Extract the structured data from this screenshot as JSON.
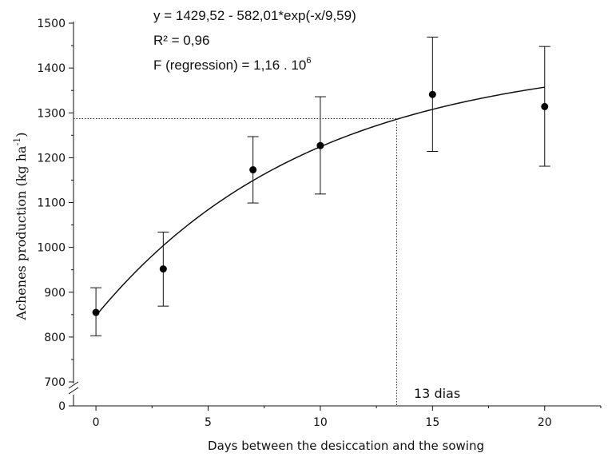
{
  "chart_data": {
    "type": "scatter",
    "xlabel": "Days between the desiccation and the sowing",
    "ylabel_main": "Achenes production (kg ha",
    "ylabel_sup": "-1",
    "ylabel_close": ")",
    "xlim": [
      -1,
      23
    ],
    "ylim": [
      700,
      1500
    ],
    "y_break_label": "0",
    "x_ticks": [
      "0",
      "5",
      "10",
      "15",
      "20"
    ],
    "y_ticks": [
      "700",
      "800",
      "900",
      "1000",
      "1100",
      "1200",
      "1300",
      "1400",
      "1500"
    ],
    "points": [
      {
        "x": 0,
        "y": 855,
        "err_low": 803,
        "err_high": 910
      },
      {
        "x": 3,
        "y": 952,
        "err_low": 869,
        "err_high": 1034
      },
      {
        "x": 7,
        "y": 1173,
        "err_low": 1099,
        "err_high": 1247
      },
      {
        "x": 10,
        "y": 1227,
        "err_low": 1119,
        "err_high": 1336
      },
      {
        "x": 15,
        "y": 1341,
        "err_low": 1214,
        "err_high": 1469
      },
      {
        "x": 20,
        "y": 1314,
        "err_low": 1181,
        "err_high": 1448
      }
    ],
    "fit": {
      "a": 1429.52,
      "b": 582.01,
      "c": 9.59,
      "x_range": [
        0,
        20
      ]
    },
    "reference": {
      "x": 13.4,
      "y": 1287
    },
    "grid": false,
    "legend": "none",
    "annotations": {
      "equation": "y = 1429,52 - 582,01*exp(-x/9,59)",
      "r2": "R² = 0,96",
      "f_main": "F (regression) = 1,16 . 10",
      "f_sup": "6",
      "days_label": "13 dias"
    }
  }
}
